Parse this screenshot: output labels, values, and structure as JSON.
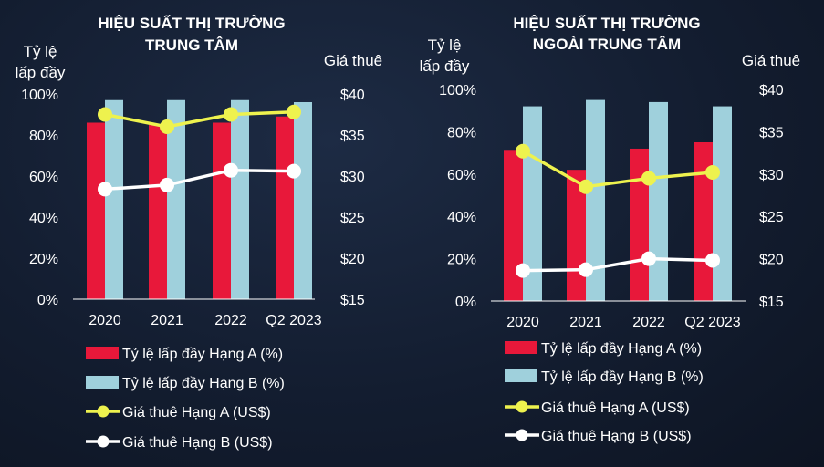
{
  "colors": {
    "grade_a_occupancy": "#e8183a",
    "grade_b_occupancy": "#9fd0dc",
    "grade_a_rent": "#eef24e",
    "grade_b_rent": "#ffffff",
    "axis": "#ffffff"
  },
  "chart_data": [
    {
      "type": "bar",
      "title_line1": "HIỆU SUẤT THỊ TRƯỜNG",
      "title_line2": "TRUNG TÂM",
      "ylabel_left_line1": "Tỷ lệ",
      "ylabel_left_line2": "lấp đầy",
      "ylabel_right": "Giá thuê",
      "categories": [
        "2020",
        "2021",
        "2022",
        "Q2 2023"
      ],
      "left_axis": {
        "ylim": [
          0,
          100
        ],
        "ticks": [
          "0%",
          "20%",
          "40%",
          "60%",
          "80%",
          "100%"
        ]
      },
      "right_axis": {
        "ylim": [
          15,
          40
        ],
        "ticks": [
          "$15",
          "$20",
          "$25",
          "$30",
          "$35",
          "$40"
        ]
      },
      "grid": false,
      "legend_position": "bottom",
      "series": [
        {
          "name": "Tỷ lệ lấp đầy Hạng A (%)",
          "type": "bar",
          "axis": "left",
          "values": [
            86,
            85,
            86,
            89
          ]
        },
        {
          "name": "Tỷ lệ lấp đầy Hạng B (%)",
          "type": "bar",
          "axis": "left",
          "values": [
            97,
            97,
            97,
            96
          ]
        },
        {
          "name": "Giá thuê Hạng A (US$)",
          "type": "line",
          "axis": "right",
          "values": [
            37.5,
            36.0,
            37.5,
            37.8
          ]
        },
        {
          "name": "Giá thuê Hạng B (US$)",
          "type": "line",
          "axis": "right",
          "values": [
            28.4,
            28.9,
            30.7,
            30.6
          ]
        }
      ]
    },
    {
      "type": "bar",
      "title_line1": "HIỆU SUẤT THỊ TRƯỜNG",
      "title_line2": "NGOÀI TRUNG TÂM",
      "ylabel_left_line1": "Tỷ lệ",
      "ylabel_left_line2": "lấp đầy",
      "ylabel_right": "Giá thuê",
      "categories": [
        "2020",
        "2021",
        "2022",
        "Q2 2023"
      ],
      "left_axis": {
        "ylim": [
          0,
          100
        ],
        "ticks": [
          "0%",
          "20%",
          "40%",
          "60%",
          "80%",
          "100%"
        ]
      },
      "right_axis": {
        "ylim": [
          15,
          40
        ],
        "ticks": [
          "$15",
          "$20",
          "$25",
          "$30",
          "$35",
          "$40"
        ]
      },
      "grid": false,
      "legend_position": "bottom",
      "series": [
        {
          "name": "Tỷ lệ lấp đầy Hạng A (%)",
          "type": "bar",
          "axis": "left",
          "values": [
            71,
            62,
            72,
            75
          ]
        },
        {
          "name": "Tỷ lệ lấp đầy Hạng B (%)",
          "type": "bar",
          "axis": "left",
          "values": [
            92,
            95,
            94,
            92
          ]
        },
        {
          "name": "Giá thuê Hạng A (US$)",
          "type": "line",
          "axis": "right",
          "values": [
            32.7,
            28.5,
            29.5,
            30.2
          ]
        },
        {
          "name": "Giá thuê Hạng B (US$)",
          "type": "line",
          "axis": "right",
          "values": [
            18.6,
            18.7,
            20.0,
            19.8
          ]
        }
      ]
    }
  ]
}
